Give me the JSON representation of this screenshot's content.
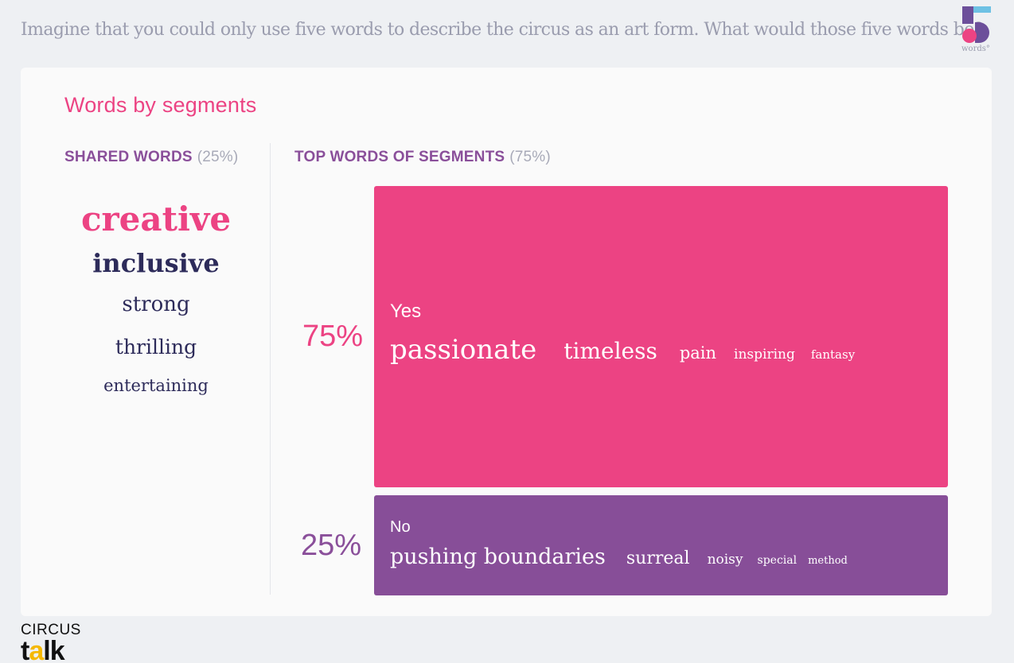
{
  "question": {
    "quote_icon": "quote-icon",
    "text": "Imagine that you could only use five words to describe the circus as an art form. What would those five words be?"
  },
  "brand": {
    "label": "words°"
  },
  "card": {
    "title": "Words by segments",
    "shared": {
      "heading": "SHARED WORDS",
      "pct": "(25%)",
      "words": [
        "creative",
        "inclusive",
        "strong",
        "thrilling",
        "entertaining"
      ]
    },
    "top": {
      "heading": "TOP WORDS OF SEGMENTS",
      "pct": "(75%)"
    },
    "segments": [
      {
        "pct": "75%",
        "name": "Yes",
        "color": "#ec4383",
        "share": 0.75,
        "words": [
          "passionate",
          "timeless",
          "pain",
          "inspiring",
          "fantasy"
        ]
      },
      {
        "pct": "25%",
        "name": "No",
        "color": "#874e98",
        "share": 0.25,
        "words": [
          "pushing boundaries",
          "surreal",
          "noisy",
          "special",
          "method"
        ]
      }
    ]
  },
  "footer": {
    "logo_top": "CIRCUS",
    "logo_bottom_1": "t",
    "logo_bottom_a": "a",
    "logo_bottom_2": "lk"
  },
  "colors": {
    "accent": "#ec4383",
    "secondary": "#874e98",
    "background": "#eef0f3"
  }
}
